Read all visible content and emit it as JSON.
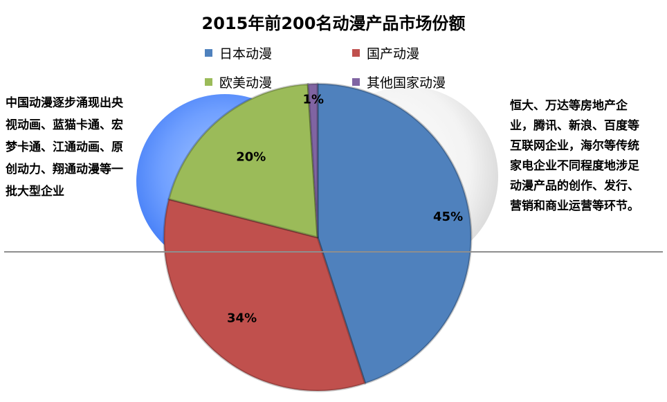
{
  "chart_data": {
    "type": "pie",
    "title": "2015年前200名动漫产品市场份额",
    "categories": [
      "日本动漫",
      "国产动漫",
      "欧美动漫",
      "其他国家动漫"
    ],
    "values": [
      45,
      34,
      20,
      1
    ],
    "labels": [
      "45%",
      "34%",
      "20%",
      "1%"
    ],
    "colors": [
      "#4f81bd",
      "#c0504d",
      "#9bbb59",
      "#8064a2"
    ],
    "legend": "top"
  },
  "annotations": {
    "left": "中国动漫逐步涌现出央视动画、蓝猫卡通、宏梦卡通、江通动画、原创动力、翔通动漫等一批大型企业",
    "right": "恒大、万达等房地产企业，腾讯、新浪、百度等互联网企业，海尔等传统家电企业不同程度地涉足动漫产品的创作、发行、营销和商业运营等环节。"
  }
}
